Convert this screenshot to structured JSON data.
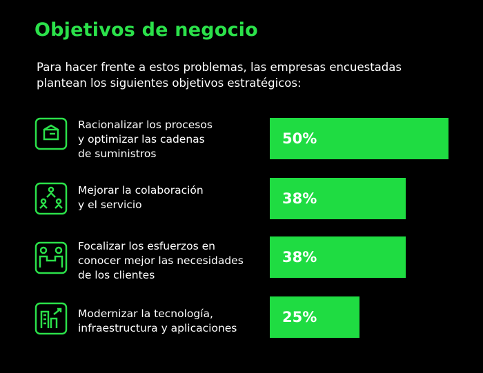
{
  "chart_data": {
    "type": "bar",
    "title": "Objetivos de negocio",
    "subtitle": "Para hacer frente a estos problemas, las empresas encuestadas\nplantean los siguientes objetivos estratégicos:",
    "categories": [
      "Racionalizar los procesos\ny optimizar las cadenas\nde suministros",
      "Mejorar la colaboración\ny el servicio",
      "Focalizar los esfuerzos en\nconocer mejor las necesidades\nde los clientes",
      "Modernizar la tecnología,\ninfraestructura y aplicaciones"
    ],
    "values": [
      50,
      38,
      38,
      25
    ],
    "value_labels": [
      "50%",
      "38%",
      "38%",
      "25%"
    ],
    "color": "#1fdc42"
  }
}
